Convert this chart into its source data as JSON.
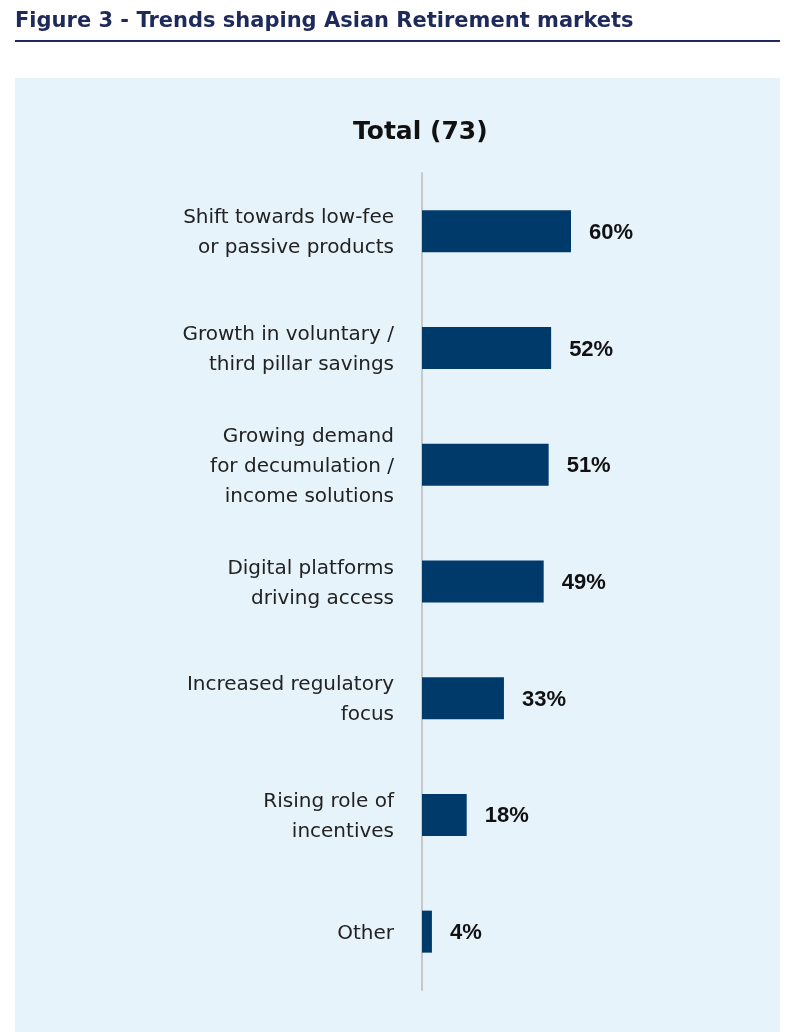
{
  "chart_data": {
    "type": "bar",
    "orientation": "horizontal",
    "title": "Figure 3 - Trends shaping Asian Retirement markets",
    "subtitle": "Total (73)",
    "categories": [
      "Shift towards low-fee\nor passive products",
      "Growth in voluntary /\nthird pillar savings",
      "Growing demand\nfor decumulation /\nincome solutions",
      "Digital platforms\ndriving access",
      "Increased regulatory\nfocus",
      "Rising role of\nincentives",
      "Other"
    ],
    "values": [
      60,
      52,
      51,
      49,
      33,
      18,
      4
    ],
    "value_labels": [
      "60%",
      "52%",
      "51%",
      "49%",
      "33%",
      "18%",
      "4%"
    ],
    "color": "#003a6b",
    "tick_labels": "y",
    "grid": false
  }
}
